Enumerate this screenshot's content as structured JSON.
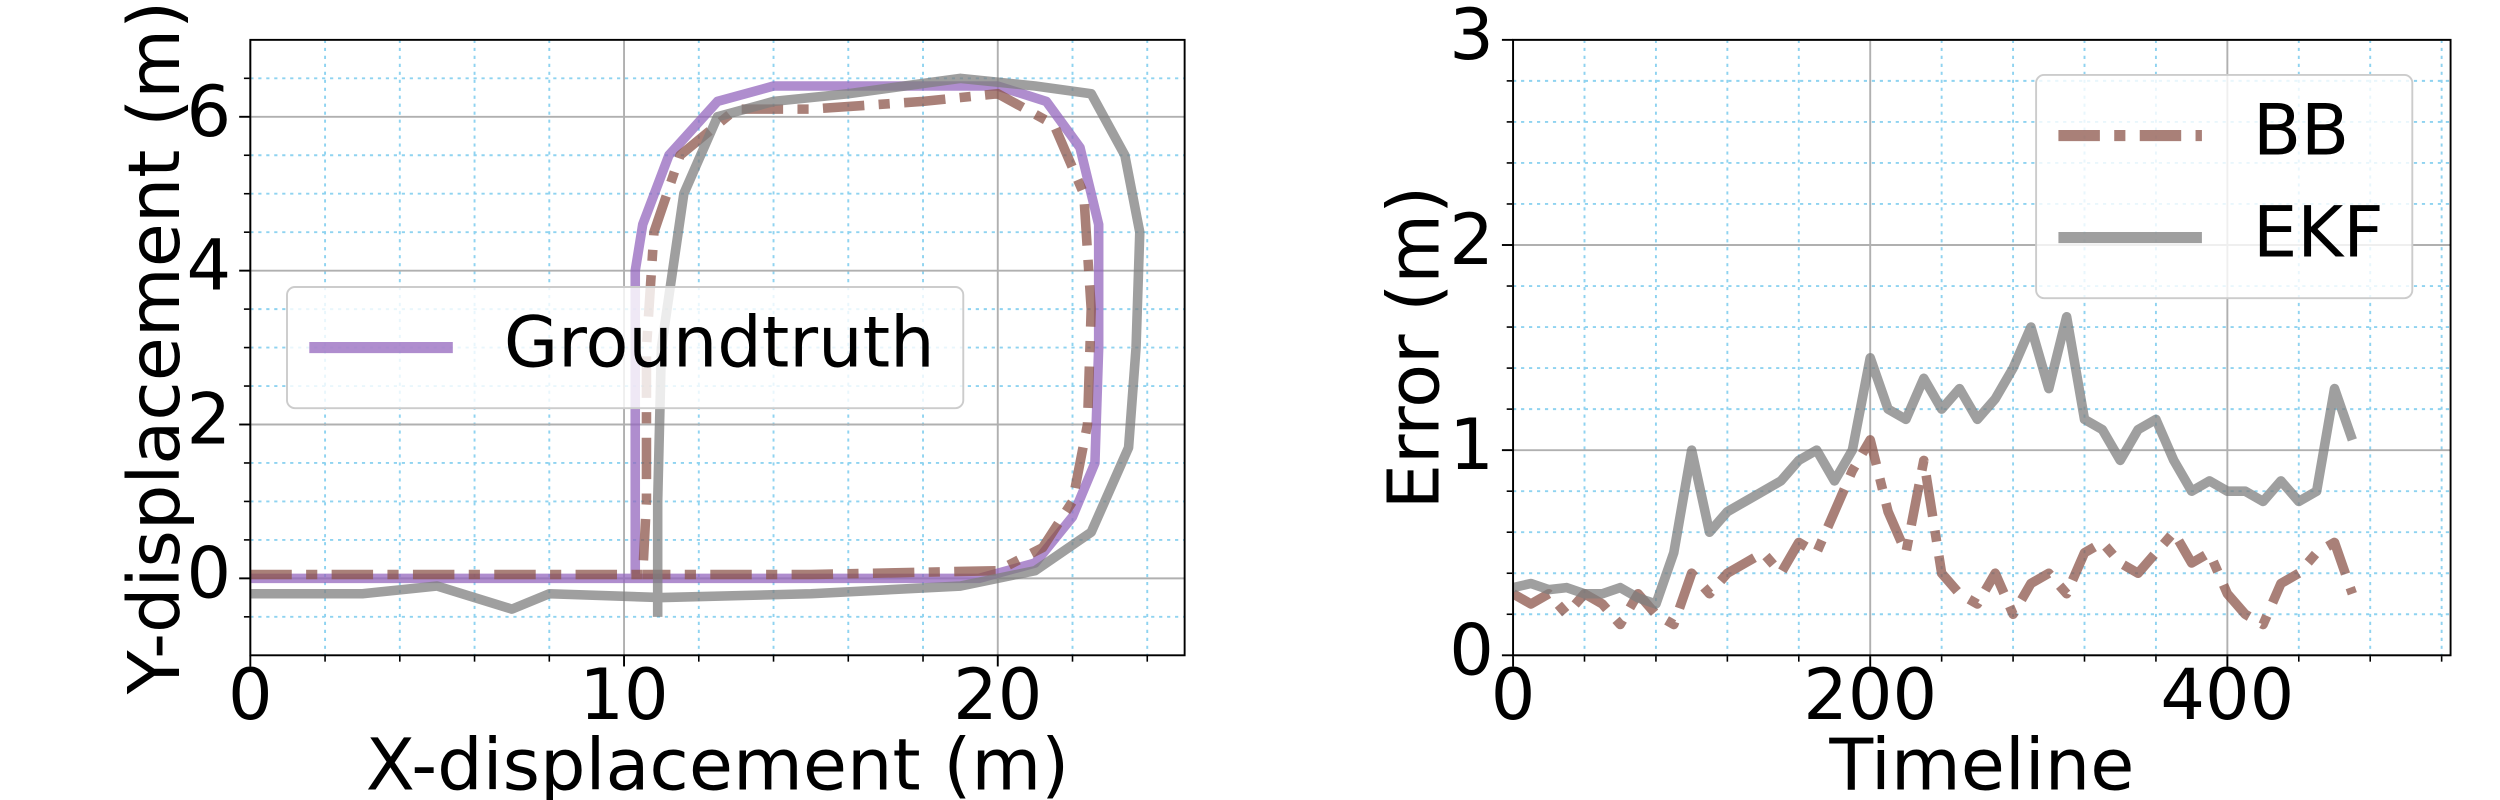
{
  "chart_data": [
    {
      "type": "line",
      "xlabel": "X-displacement (m)",
      "ylabel": "Y-displacement (m)",
      "xlim": [
        0,
        25
      ],
      "ylim": [
        -1,
        7
      ],
      "xticks": [
        0,
        10,
        20
      ],
      "yticks": [
        0,
        2,
        4,
        6
      ],
      "minor_xticks": [
        2,
        4,
        6,
        8,
        12,
        14,
        16,
        18,
        22,
        24
      ],
      "minor_yticks": [
        -0.5,
        0.5,
        1,
        1.5,
        2.5,
        3,
        3.5,
        4.5,
        5,
        5.5,
        6.5
      ],
      "grid": true,
      "legend": "center left",
      "series": [
        {
          "name": "Groundtruth",
          "color": "#9467bd",
          "style": "solid",
          "x": [
            0,
            5,
            10.3,
            10.3,
            10.3,
            10.5,
            11.2,
            12.5,
            14,
            17,
            20,
            21.3,
            22.2,
            22.7,
            22.7,
            22.6,
            22,
            21,
            19.5,
            15,
            10.3
          ],
          "values": [
            0,
            0,
            0,
            2,
            4,
            4.6,
            5.5,
            6.2,
            6.4,
            6.4,
            6.4,
            6.2,
            5.6,
            4.6,
            3,
            1.5,
            0.8,
            0.2,
            0,
            0,
            0
          ]
        },
        {
          "color": "#8c564b",
          "style": "dashdot",
          "x": [
            0,
            5,
            10.5,
            10.6,
            10.6,
            10.8,
            11.5,
            13,
            15,
            18,
            20,
            21.5,
            22.3,
            22.5,
            22.4,
            22,
            21.2,
            20,
            15,
            10.5
          ],
          "values": [
            0.05,
            0.05,
            0.05,
            1,
            3,
            4.5,
            5.5,
            6.1,
            6.1,
            6.2,
            6.3,
            5.9,
            5,
            3.5,
            2,
            1,
            0.4,
            0.1,
            0.05,
            0.05
          ]
        },
        {
          "color": "#7f7f7f",
          "style": "solid",
          "x": [
            0,
            3,
            5,
            7,
            8,
            11,
            15,
            19,
            21,
            22.5,
            23.5,
            23.7,
            23.8,
            23.4,
            22.5,
            21,
            19,
            16,
            14,
            12.5,
            11.6,
            11,
            10.9,
            10.9
          ],
          "values": [
            -0.2,
            -0.2,
            -0.1,
            -0.4,
            -0.2,
            -0.25,
            -0.2,
            -0.1,
            0.1,
            0.6,
            1.7,
            3,
            4.5,
            5.5,
            6.3,
            6.4,
            6.5,
            6.3,
            6.2,
            6,
            5,
            3,
            1,
            -0.5
          ]
        }
      ]
    },
    {
      "type": "line",
      "xlabel": "Timeline",
      "ylabel": "Error (m)",
      "xlim": [
        0,
        525
      ],
      "ylim": [
        0,
        3
      ],
      "xticks": [
        0,
        200,
        400
      ],
      "yticks": [
        0,
        1,
        2,
        3
      ],
      "minor_xticks": [
        40,
        80,
        120,
        160,
        240,
        280,
        320,
        360,
        440,
        480,
        520
      ],
      "minor_yticks": [
        0.2,
        0.4,
        0.6,
        0.8,
        1.2,
        1.4,
        1.6,
        1.8,
        2.2,
        2.4,
        2.6,
        2.8
      ],
      "grid": true,
      "legend": "upper right",
      "x": [
        0,
        10,
        20,
        30,
        40,
        50,
        60,
        70,
        80,
        90,
        100,
        110,
        120,
        130,
        140,
        150,
        160,
        170,
        180,
        190,
        200,
        210,
        220,
        230,
        240,
        250,
        260,
        270,
        280,
        290,
        300,
        310,
        320,
        330,
        340,
        350,
        360,
        370,
        380,
        390,
        400,
        410,
        420,
        430,
        440,
        450,
        460,
        470
      ],
      "series": [
        {
          "name": "BB",
          "color": "#8c564b",
          "style": "dashdot",
          "values": [
            0.3,
            0.25,
            0.3,
            0.2,
            0.3,
            0.25,
            0.15,
            0.3,
            0.2,
            0.15,
            0.4,
            0.3,
            0.4,
            0.45,
            0.5,
            0.4,
            0.55,
            0.5,
            0.7,
            0.9,
            1.05,
            0.7,
            0.5,
            0.95,
            0.4,
            0.3,
            0.25,
            0.4,
            0.2,
            0.35,
            0.4,
            0.3,
            0.5,
            0.55,
            0.45,
            0.4,
            0.5,
            0.6,
            0.45,
            0.5,
            0.3,
            0.2,
            0.15,
            0.35,
            0.4,
            0.5,
            0.55,
            0.3
          ]
        },
        {
          "name": "EKF",
          "color": "#7f7f7f",
          "style": "solid",
          "values": [
            0.33,
            0.35,
            0.32,
            0.33,
            0.3,
            0.3,
            0.33,
            0.28,
            0.25,
            0.5,
            1.0,
            0.6,
            0.7,
            0.75,
            0.8,
            0.85,
            0.95,
            1.0,
            0.85,
            1.0,
            1.45,
            1.2,
            1.15,
            1.35,
            1.2,
            1.3,
            1.15,
            1.25,
            1.4,
            1.6,
            1.3,
            1.65,
            1.15,
            1.1,
            0.95,
            1.1,
            1.15,
            0.95,
            0.8,
            0.85,
            0.8,
            0.8,
            0.75,
            0.85,
            0.75,
            0.8,
            1.3,
            1.05
          ]
        }
      ]
    }
  ]
}
